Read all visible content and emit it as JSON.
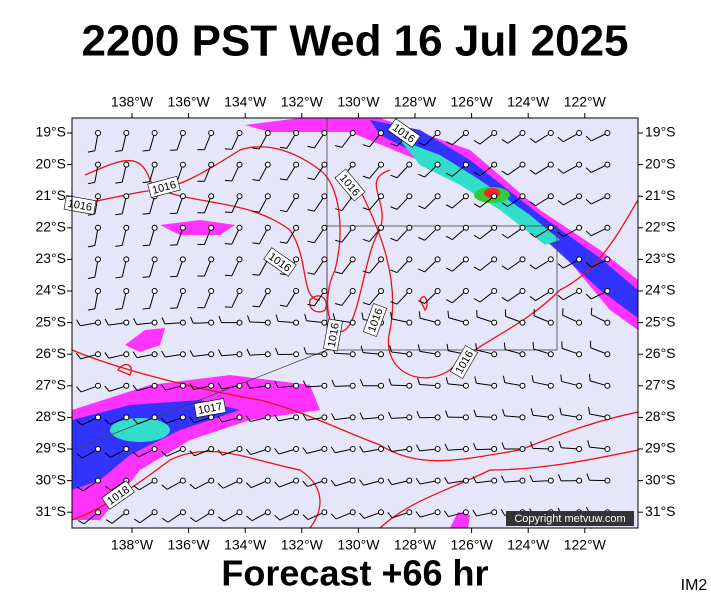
{
  "header": {
    "title": "2200 PST Wed 16 Jul 2025"
  },
  "map": {
    "lon_labels": [
      "138°W",
      "136°W",
      "134°W",
      "132°W",
      "130°W",
      "128°W",
      "126°W",
      "124°W",
      "122°W"
    ],
    "lat_labels": [
      "19°S",
      "20°S",
      "21°S",
      "22°S",
      "23°S",
      "24°S",
      "25°S",
      "26°S",
      "27°S",
      "28°S",
      "29°S",
      "30°S",
      "31°S"
    ],
    "isobar_labels": [
      "1016",
      "1016",
      "1016",
      "1016",
      "1016",
      "1016",
      "1016",
      "1016",
      "1017",
      "1018"
    ],
    "copyright": "Copyright metvuw.com"
  },
  "footer": {
    "forecast": "Forecast +66 hr",
    "code": "IM2"
  }
}
